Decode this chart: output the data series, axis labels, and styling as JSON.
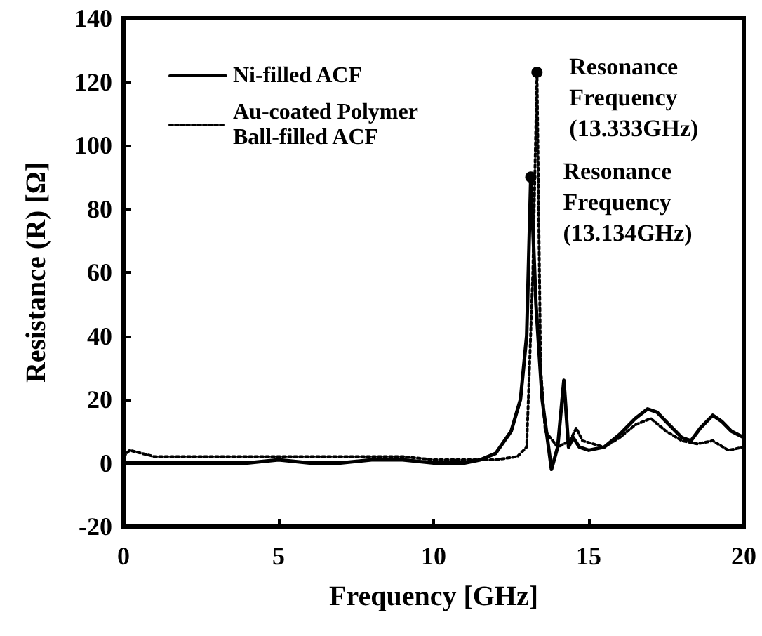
{
  "chart_data": {
    "type": "line",
    "xlabel": "Frequency [GHz]",
    "ylabel": "Resistance (R) [Ω]",
    "xlim": [
      0,
      20
    ],
    "xticks": [
      0,
      5,
      10,
      15,
      20
    ],
    "ylim": [
      -20,
      140
    ],
    "yticks": [
      -20,
      0,
      20,
      40,
      60,
      80,
      100,
      120,
      140
    ],
    "grid": false,
    "legend": "top left",
    "series": [
      {
        "name": "Ni-filled ACF",
        "color": "#000000",
        "line_style": "solid",
        "x": [
          0,
          1,
          2,
          3,
          4,
          5,
          6,
          7,
          8,
          9,
          10,
          10.5,
          11,
          11.5,
          12,
          12.5,
          12.8,
          13.0,
          13.134,
          13.3,
          13.5,
          13.8,
          14.0,
          14.2,
          14.35,
          14.5,
          14.7,
          15,
          15.5,
          16,
          16.5,
          16.9,
          17.2,
          17.5,
          18,
          18.3,
          18.6,
          19.0,
          19.3,
          19.6,
          20
        ],
        "values": [
          0,
          0,
          0,
          0,
          0,
          1,
          0,
          0,
          1,
          1,
          0,
          0,
          0,
          1,
          3,
          10,
          20,
          40,
          90,
          50,
          20,
          -2,
          5,
          26,
          5,
          8,
          5,
          4,
          5,
          9,
          14,
          17,
          16,
          13,
          8,
          7,
          11,
          15,
          13,
          10,
          8
        ]
      },
      {
        "name": "Au-coated Polymer\nBall-filled ACF",
        "color": "#000000",
        "line_style": "dotted",
        "x": [
          0,
          0.2,
          1,
          2,
          3,
          4,
          5,
          6,
          7,
          8,
          9,
          10,
          11,
          12,
          12.7,
          13.0,
          13.2,
          13.333,
          13.45,
          13.6,
          14.0,
          14.4,
          14.6,
          14.8,
          15.5,
          16,
          16.5,
          17,
          17.5,
          18,
          18.5,
          19,
          19.5,
          20
        ],
        "values": [
          2,
          4,
          2,
          2,
          2,
          2,
          2,
          2,
          2,
          2,
          2,
          1,
          1,
          1,
          2,
          5,
          60,
          123,
          30,
          10,
          5,
          7,
          11,
          7,
          5,
          8,
          12,
          14,
          10,
          7,
          6,
          7,
          4,
          5
        ]
      }
    ],
    "annotations": [
      {
        "text": "Resonance\nFrequency\n(13.333GHz)",
        "x": 13.333,
        "y": 123
      },
      {
        "text": "Resonance\nFrequency\n(13.134GHz)",
        "x": 13.134,
        "y": 90
      }
    ]
  }
}
